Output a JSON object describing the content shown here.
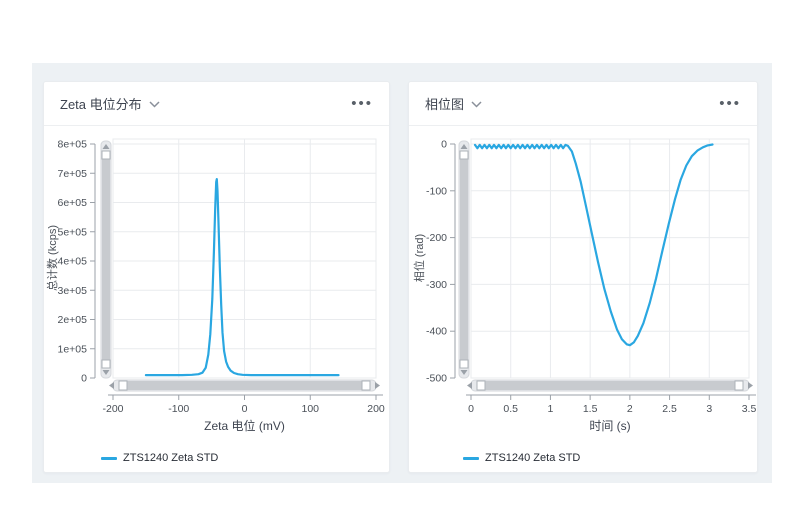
{
  "ui": {
    "more_icon": "•••",
    "chevron_icon": "chevron-down",
    "accent_color": "#2aa7e1",
    "band_color": "#edf1f4"
  },
  "panels": [
    {
      "title": "Zeta 电位分布"
    },
    {
      "title": "相位图"
    }
  ],
  "chart_data": [
    {
      "type": "line",
      "title": "Zeta 电位分布",
      "xlabel": "Zeta 电位 (mV)",
      "ylabel": "总计数 (kcps)",
      "xlim": [
        -200,
        200
      ],
      "ylim": [
        0,
        800000
      ],
      "grid": true,
      "legend_position": "bottom-left",
      "xticks": [
        -200,
        -100,
        0,
        100,
        200
      ],
      "xtick_labels": [
        "-200",
        "-100",
        "0",
        "100",
        "200"
      ],
      "yticks": [
        0,
        100000,
        200000,
        300000,
        400000,
        500000,
        600000,
        700000,
        800000
      ],
      "ytick_labels": [
        "0",
        "1e+05",
        "2e+05",
        "3e+05",
        "4e+05",
        "5e+05",
        "6e+05",
        "7e+05",
        "8e+05"
      ],
      "series": [
        {
          "name": "ZTS1240 Zeta STD",
          "color": "#2aa7e1",
          "points": [
            [
              -150,
              10000
            ],
            [
              -120,
              10000
            ],
            [
              -95,
              10000
            ],
            [
              -80,
              11000
            ],
            [
              -70,
              13000
            ],
            [
              -64,
              18000
            ],
            [
              -59,
              35000
            ],
            [
              -55,
              80000
            ],
            [
              -52,
              150000
            ],
            [
              -49,
              270000
            ],
            [
              -46.5,
              430000
            ],
            [
              -44.5,
              580000
            ],
            [
              -43,
              670000
            ],
            [
              -42.2,
              680000
            ],
            [
              -41,
              640000
            ],
            [
              -39.5,
              530000
            ],
            [
              -37.5,
              380000
            ],
            [
              -35.5,
              250000
            ],
            [
              -33.5,
              155000
            ],
            [
              -31,
              92000
            ],
            [
              -28,
              56000
            ],
            [
              -25,
              38000
            ],
            [
              -21,
              25000
            ],
            [
              -16,
              17000
            ],
            [
              -10,
              13000
            ],
            [
              -3,
              11000
            ],
            [
              10,
              10000
            ],
            [
              40,
              10000
            ],
            [
              80,
              10000
            ],
            [
              120,
              10000
            ],
            [
              143,
              10000
            ]
          ]
        }
      ]
    },
    {
      "type": "line",
      "title": "相位图",
      "xlabel": "时间 (s)",
      "ylabel": "相位 (rad)",
      "xlim": [
        0,
        3.5
      ],
      "ylim": [
        -500,
        0
      ],
      "grid": true,
      "legend_position": "bottom-left",
      "xticks": [
        0,
        0.5,
        1,
        1.5,
        2,
        2.5,
        3,
        3.5
      ],
      "xtick_labels": [
        "0",
        "0.5",
        "1",
        "1.5",
        "2",
        "2.5",
        "3",
        "3.5"
      ],
      "yticks": [
        0,
        -100,
        -200,
        -300,
        -400,
        -500
      ],
      "ytick_labels": [
        "0",
        "-100",
        "-200",
        "-300",
        "-400",
        "-500"
      ],
      "series": [
        {
          "name": "ZTS1240 Zeta STD",
          "color": "#2aa7e1",
          "points": [
            [
              0.05,
              -2
            ],
            [
              0.08,
              -9
            ],
            [
              0.11,
              -2
            ],
            [
              0.14,
              -9
            ],
            [
              0.17,
              -2
            ],
            [
              0.2,
              -9
            ],
            [
              0.23,
              -2
            ],
            [
              0.26,
              -9
            ],
            [
              0.29,
              -2
            ],
            [
              0.32,
              -9
            ],
            [
              0.35,
              -2
            ],
            [
              0.38,
              -9
            ],
            [
              0.41,
              -2
            ],
            [
              0.44,
              -9
            ],
            [
              0.47,
              -2
            ],
            [
              0.5,
              -9
            ],
            [
              0.53,
              -2
            ],
            [
              0.56,
              -9
            ],
            [
              0.59,
              -2
            ],
            [
              0.62,
              -9
            ],
            [
              0.65,
              -2
            ],
            [
              0.68,
              -9
            ],
            [
              0.71,
              -2
            ],
            [
              0.74,
              -9
            ],
            [
              0.77,
              -2
            ],
            [
              0.8,
              -9
            ],
            [
              0.83,
              -2
            ],
            [
              0.86,
              -9
            ],
            [
              0.89,
              -2
            ],
            [
              0.92,
              -9
            ],
            [
              0.95,
              -2
            ],
            [
              0.98,
              -9
            ],
            [
              1.01,
              -2
            ],
            [
              1.04,
              -9
            ],
            [
              1.07,
              -2
            ],
            [
              1.1,
              -9
            ],
            [
              1.13,
              -2
            ],
            [
              1.16,
              -9
            ],
            [
              1.19,
              -2
            ],
            [
              1.22,
              -4
            ],
            [
              1.27,
              -16
            ],
            [
              1.32,
              -42
            ],
            [
              1.38,
              -80
            ],
            [
              1.45,
              -135
            ],
            [
              1.52,
              -190
            ],
            [
              1.6,
              -253
            ],
            [
              1.68,
              -310
            ],
            [
              1.76,
              -358
            ],
            [
              1.84,
              -397
            ],
            [
              1.9,
              -417
            ],
            [
              1.96,
              -428
            ],
            [
              2.0,
              -430
            ],
            [
              2.05,
              -424
            ],
            [
              2.1,
              -410
            ],
            [
              2.17,
              -383
            ],
            [
              2.25,
              -340
            ],
            [
              2.33,
              -287
            ],
            [
              2.41,
              -228
            ],
            [
              2.49,
              -170
            ],
            [
              2.57,
              -117
            ],
            [
              2.64,
              -76
            ],
            [
              2.71,
              -46
            ],
            [
              2.78,
              -26
            ],
            [
              2.85,
              -14
            ],
            [
              2.92,
              -7
            ],
            [
              2.98,
              -3
            ],
            [
              3.04,
              -1
            ]
          ]
        }
      ]
    }
  ]
}
